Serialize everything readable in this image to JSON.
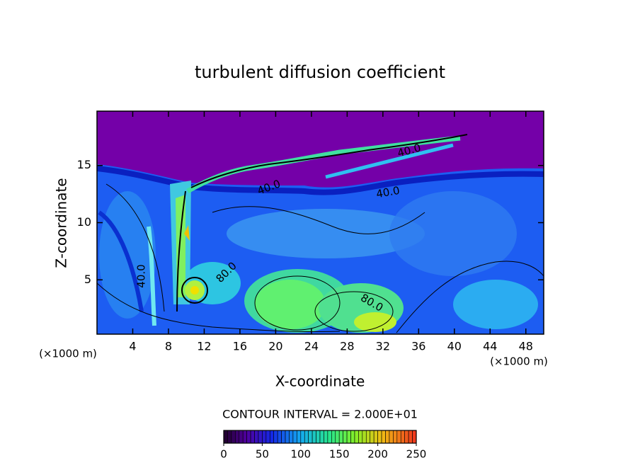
{
  "chart_data": {
    "type": "contour",
    "title": "turbulent diffusion coefficient",
    "x_label": "X-coordinate",
    "y_label": "Z-coordinate",
    "x_unit": "(×1000 m)",
    "y_unit": "(×1000 m)",
    "xlim": [
      0,
      50
    ],
    "ylim": [
      0.25,
      19.75
    ],
    "xticks": [
      4,
      8,
      12,
      16,
      20,
      24,
      28,
      32,
      36,
      40,
      44,
      48
    ],
    "yticks": [
      5,
      10,
      15
    ],
    "contour_interval_label": "CONTOUR INTERVAL = 2.000E+01",
    "contour_labels": [
      "40.0",
      "40.0",
      "80.0",
      "80.0",
      "40.0",
      "40.0"
    ],
    "colorbar": {
      "lim": [
        0,
        250
      ],
      "ticks": [
        0,
        50,
        100,
        150,
        200,
        250
      ]
    }
  }
}
